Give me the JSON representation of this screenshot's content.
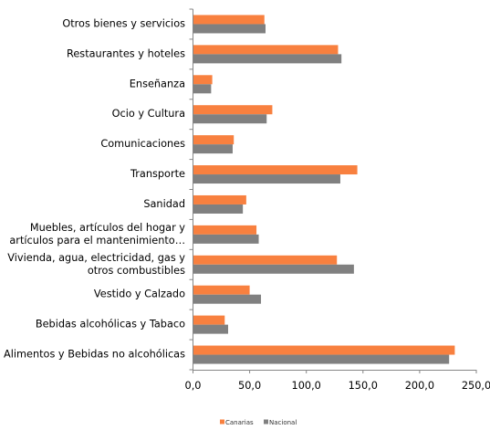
{
  "chart_data": {
    "type": "bar",
    "orientation": "horizontal",
    "categories": [
      [
        "Alimentos y Bebidas no alcohólicas"
      ],
      [
        "Bebidas alcohólicas y Tabaco"
      ],
      [
        "Vestido y Calzado"
      ],
      [
        "Vivienda, agua, electricidad, gas y",
        "otros combustibles"
      ],
      [
        "Muebles, artículos del hogar y",
        "artículos para el mantenimiento…"
      ],
      [
        "Sanidad"
      ],
      [
        "Transporte"
      ],
      [
        "Comunicaciones"
      ],
      [
        "Ocio y Cultura"
      ],
      [
        "Enseñanza"
      ],
      [
        "Restaurantes y hoteles"
      ],
      [
        "Otros bienes y servicios"
      ]
    ],
    "series": [
      {
        "name": "Canarias",
        "color": "#F8803F",
        "values": [
          231.0,
          28.0,
          50.0,
          127.0,
          56.0,
          47.0,
          145.0,
          36.0,
          70.0,
          17.0,
          128.0,
          63.0
        ]
      },
      {
        "name": "Nacional",
        "color": "#808080",
        "values": [
          226.0,
          31.0,
          60.0,
          142.0,
          58.0,
          44.0,
          130.0,
          35.0,
          65.0,
          16.0,
          131.0,
          64.0
        ]
      }
    ],
    "xlim": [
      0,
      250
    ],
    "xticks": [
      "0,0",
      "50,0",
      "100,0",
      "150,0",
      "200,0",
      "250,0"
    ],
    "grid": false,
    "legend_position": "bottom"
  }
}
